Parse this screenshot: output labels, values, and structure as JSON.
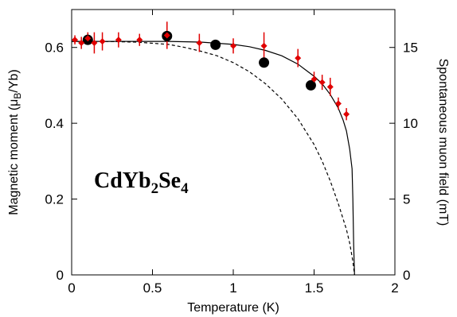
{
  "chart_data": {
    "type": "scatter",
    "title": "",
    "inset_label": {
      "base": "CdYb",
      "sub1": "2",
      "mid": "Se",
      "sub2": "4"
    },
    "xlabel": "Temperature (K)",
    "ylabel_left": {
      "pre": "Magnetic moment (μ",
      "sub": "B",
      "post": "/Yb)"
    },
    "ylabel_right": "Spontaneous muon field (mT)",
    "xlim": [
      0,
      2
    ],
    "ylim_left": [
      0,
      0.7
    ],
    "ylim_right": [
      0,
      17.5
    ],
    "x_ticks": [
      0,
      0.5,
      1,
      1.5,
      2
    ],
    "x_tick_labels": [
      "0",
      "0.5",
      "1",
      "1.5",
      "2"
    ],
    "y_left_ticks": [
      0,
      0.2,
      0.4,
      0.6
    ],
    "y_left_tick_labels": [
      "0",
      "0.2",
      "0.4",
      "0.6"
    ],
    "y_right_ticks": [
      0,
      5,
      10,
      15
    ],
    "y_right_tick_labels": [
      "0",
      "5",
      "10",
      "15"
    ],
    "grid": false,
    "legend": "none",
    "series": [
      {
        "axis": "left",
        "style": "black-filled-circles",
        "color": "#000000",
        "points": [
          {
            "x": 0.1,
            "y": 0.62
          },
          {
            "x": 0.59,
            "y": 0.63
          },
          {
            "x": 0.89,
            "y": 0.607
          },
          {
            "x": 1.19,
            "y": 0.56
          },
          {
            "x": 1.48,
            "y": 0.5
          }
        ]
      },
      {
        "axis": "right",
        "style": "red-diamonds-with-errorbars",
        "color": "#e00000",
        "points": [
          {
            "x": 0.02,
            "y": 15.5,
            "err": 0.3
          },
          {
            "x": 0.06,
            "y": 15.3,
            "err": 0.4
          },
          {
            "x": 0.1,
            "y": 15.6,
            "err": 0.4
          },
          {
            "x": 0.14,
            "y": 15.3,
            "err": 0.7
          },
          {
            "x": 0.19,
            "y": 15.4,
            "err": 0.6
          },
          {
            "x": 0.29,
            "y": 15.5,
            "err": 0.5
          },
          {
            "x": 0.42,
            "y": 15.5,
            "err": 0.4
          },
          {
            "x": 0.59,
            "y": 15.8,
            "err": 0.9
          },
          {
            "x": 0.79,
            "y": 15.3,
            "err": 0.6
          },
          {
            "x": 1.0,
            "y": 15.1,
            "err": 0.5
          },
          {
            "x": 1.19,
            "y": 15.1,
            "err": 0.9
          },
          {
            "x": 1.4,
            "y": 14.3,
            "err": 0.6
          },
          {
            "x": 1.5,
            "y": 12.9,
            "err": 0.5
          },
          {
            "x": 1.55,
            "y": 12.7,
            "err": 0.5
          },
          {
            "x": 1.6,
            "y": 12.4,
            "err": 0.6
          },
          {
            "x": 1.65,
            "y": 11.3,
            "err": 0.4
          },
          {
            "x": 1.7,
            "y": 10.6,
            "err": 0.4
          }
        ]
      },
      {
        "axis": "right",
        "style": "solid-line",
        "color": "#000000",
        "x": [
          0,
          0.2,
          0.4,
          0.6,
          0.8,
          1.0,
          1.1,
          1.2,
          1.3,
          1.4,
          1.5,
          1.55,
          1.6,
          1.65,
          1.68,
          1.7,
          1.72,
          1.735,
          1.74,
          1.745,
          1.75
        ],
        "y": [
          15.4,
          15.4,
          15.4,
          15.4,
          15.35,
          15.2,
          15.05,
          14.8,
          14.45,
          13.9,
          13.1,
          12.6,
          11.9,
          11.0,
          10.2,
          9.5,
          8.3,
          7.0,
          5.0,
          2.0,
          0.0
        ]
      },
      {
        "axis": "right",
        "style": "dashed-line",
        "color": "#000000",
        "x": [
          0,
          0.2,
          0.4,
          0.6,
          0.7,
          0.8,
          0.9,
          1.0,
          1.1,
          1.2,
          1.3,
          1.4,
          1.5,
          1.55,
          1.6,
          1.65,
          1.7,
          1.72,
          1.74,
          1.75
        ],
        "y": [
          15.4,
          15.4,
          15.35,
          15.2,
          15.0,
          14.75,
          14.45,
          14.0,
          13.4,
          12.6,
          11.6,
          10.3,
          8.6,
          7.5,
          6.2,
          4.7,
          3.0,
          2.1,
          0.9,
          0.0
        ]
      }
    ]
  }
}
